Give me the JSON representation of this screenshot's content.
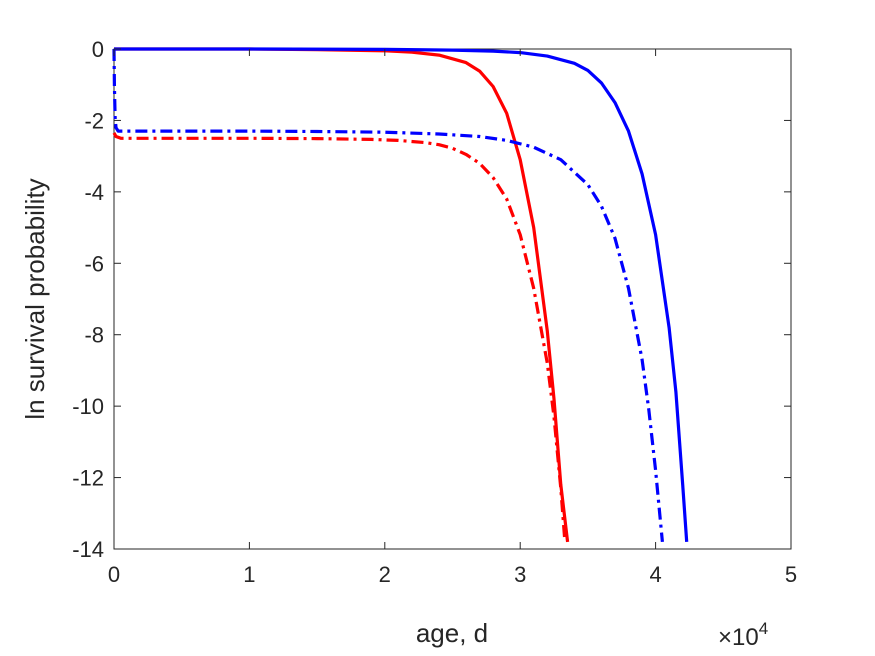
{
  "chart_data": {
    "type": "line",
    "xlabel": "age, d",
    "ylabel": "ln survival probability",
    "x_multiplier_label": "×10",
    "x_multiplier_exponent": "4",
    "xlim": [
      0,
      50000
    ],
    "ylim": [
      -14,
      0
    ],
    "x_ticks": [
      0,
      10000,
      20000,
      30000,
      40000,
      50000
    ],
    "x_tick_labels": [
      "0",
      "1",
      "2",
      "3",
      "4",
      "5"
    ],
    "y_ticks": [
      0,
      -2,
      -4,
      -6,
      -8,
      -10,
      -12,
      -14
    ],
    "y_tick_labels": [
      "0",
      "-2",
      "-4",
      "-6",
      "-8",
      "-10",
      "-12",
      "-14"
    ],
    "grid": false,
    "series": [
      {
        "color": "#ff0000",
        "style": "solid",
        "x": [
          0,
          5000,
          10000,
          15000,
          20000,
          22000,
          24000,
          26000,
          27000,
          28000,
          29000,
          30000,
          31000,
          32000,
          32500,
          33000,
          33500
        ],
        "y": [
          0,
          0,
          0,
          -0.02,
          -0.05,
          -0.09,
          -0.17,
          -0.38,
          -0.62,
          -1.05,
          -1.8,
          -3.1,
          -5.0,
          -7.9,
          -9.8,
          -12.2,
          -13.8
        ]
      },
      {
        "color": "#0000ff",
        "style": "solid",
        "x": [
          0,
          10000,
          20000,
          25000,
          28000,
          30000,
          32000,
          34000,
          35000,
          36000,
          37000,
          38000,
          39000,
          40000,
          41000,
          41500,
          42000,
          42300
        ],
        "y": [
          0,
          0,
          -0.01,
          -0.03,
          -0.06,
          -0.1,
          -0.2,
          -0.4,
          -0.6,
          -0.95,
          -1.5,
          -2.3,
          -3.5,
          -5.2,
          -7.8,
          -9.6,
          -12.2,
          -13.8
        ]
      },
      {
        "color": "#ff0000",
        "style": "dashdot",
        "x": [
          0,
          150,
          500,
          5000,
          10000,
          15000,
          19000,
          21000,
          23000,
          24000,
          25000,
          26000,
          27000,
          28000,
          29000,
          30000,
          31000,
          32000,
          32500,
          33000,
          33300
        ],
        "y": [
          -2.35,
          -2.45,
          -2.5,
          -2.5,
          -2.5,
          -2.51,
          -2.53,
          -2.56,
          -2.62,
          -2.68,
          -2.78,
          -2.95,
          -3.2,
          -3.6,
          -4.2,
          -5.2,
          -6.7,
          -8.8,
          -10.3,
          -12.3,
          -13.8
        ]
      },
      {
        "color": "#0000ff",
        "style": "dashdot",
        "x": [
          0,
          30,
          80,
          150,
          300,
          5000,
          10000,
          15000,
          20000,
          24000,
          27000,
          29000,
          31000,
          33000,
          35000,
          36000,
          37000,
          38000,
          39000,
          39500,
          40000,
          40500
        ],
        "y": [
          0,
          -1.0,
          -1.9,
          -2.2,
          -2.3,
          -2.3,
          -2.3,
          -2.31,
          -2.33,
          -2.38,
          -2.45,
          -2.56,
          -2.75,
          -3.1,
          -3.8,
          -4.4,
          -5.3,
          -6.7,
          -8.7,
          -10.1,
          -11.8,
          -13.8
        ]
      }
    ]
  }
}
